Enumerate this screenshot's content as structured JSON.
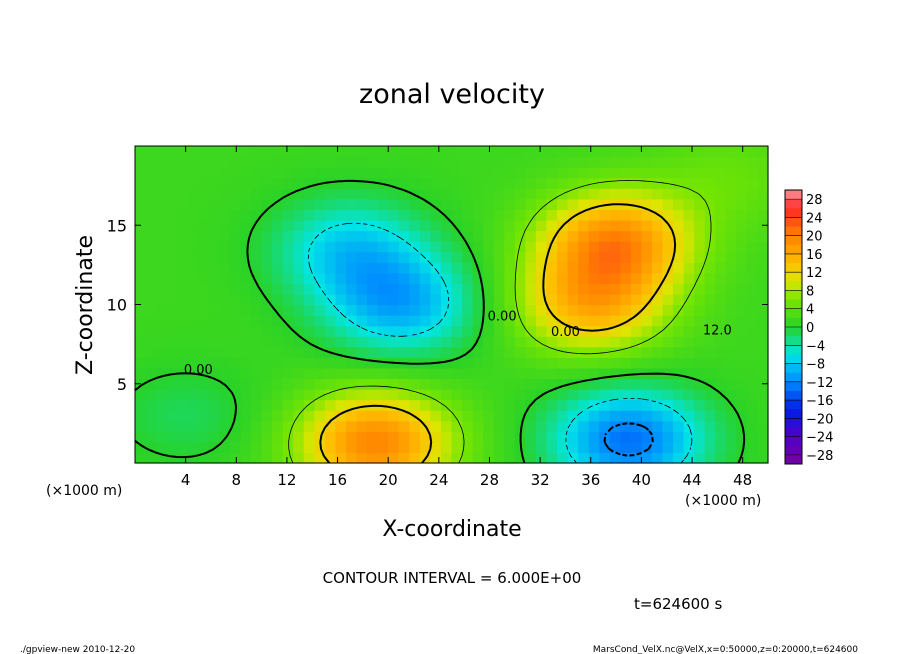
{
  "chart_data": {
    "type": "heatmap",
    "title": "zonal velocity",
    "xlabel": "X-coordinate",
    "ylabel": "Z-coordinate",
    "x_unit": "(×1000 m)",
    "y_unit": "(×1000 m)",
    "xlim": [
      0,
      50
    ],
    "ylim": [
      0,
      20
    ],
    "x_ticks": [
      4,
      8,
      12,
      16,
      20,
      24,
      28,
      32,
      36,
      40,
      44,
      48
    ],
    "y_ticks": [
      5,
      10,
      15
    ],
    "colorbar": {
      "levels": [
        28,
        24,
        20,
        16,
        12,
        8,
        4,
        0,
        -4,
        -8,
        -12,
        -16,
        -20,
        -24,
        -28
      ],
      "range": [
        -30,
        30
      ]
    },
    "contour_labels": [
      "0.00",
      "0.00",
      "0.00",
      "12.0"
    ],
    "contour_interval_text": "CONTOUR INTERVAL = 6.000E+00",
    "time_text": "t=624600 s",
    "features": [
      {
        "x": 38,
        "z": 14,
        "value": 17
      },
      {
        "x": 36,
        "z": 10,
        "value": 13
      },
      {
        "x": 19,
        "z": 1.3,
        "value": 18
      },
      {
        "x": 21,
        "z": 10,
        "value": -11
      },
      {
        "x": 17,
        "z": 13.5,
        "value": -9
      },
      {
        "x": 39,
        "z": 1.5,
        "value": -15
      },
      {
        "x": 4,
        "z": 3,
        "value": -3
      },
      {
        "x": 47,
        "z": 18,
        "value": 3
      }
    ]
  },
  "footer": {
    "left": "./gpview-new   2010-12-20",
    "right": "MarsCond_VelX.nc@VelX,x=0:50000,z=0:20000,t=624600"
  }
}
